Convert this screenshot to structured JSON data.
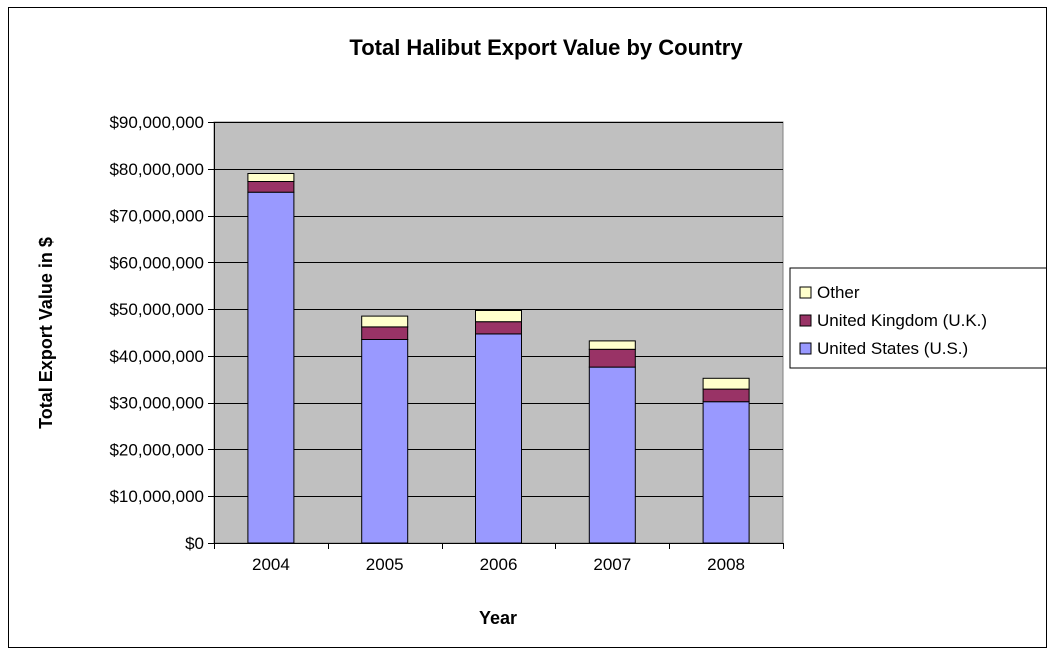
{
  "chart_data": {
    "type": "bar",
    "stacked": true,
    "title": "Total Halibut Export Value by Country",
    "xlabel": "Year",
    "ylabel": "Total Export Value in $",
    "categories": [
      "2004",
      "2005",
      "2006",
      "2007",
      "2008"
    ],
    "ylim": [
      0,
      90000000
    ],
    "yticks": [
      0,
      10000000,
      20000000,
      30000000,
      40000000,
      50000000,
      60000000,
      70000000,
      80000000,
      90000000
    ],
    "ytick_labels": [
      "$0",
      "$10,000,000",
      "$20,000,000",
      "$30,000,000",
      "$40,000,000",
      "$50,000,000",
      "$60,000,000",
      "$70,000,000",
      "$80,000,000",
      "$90,000,000"
    ],
    "grid": true,
    "legend_position": "right",
    "series": [
      {
        "name": "United States (U.S.)",
        "color": "#9999FF",
        "values": [
          75000000,
          43500000,
          44700000,
          37600000,
          30200000
        ]
      },
      {
        "name": "United Kingdom (U.K.)",
        "color": "#993366",
        "values": [
          2300000,
          2700000,
          2600000,
          3800000,
          2700000
        ]
      },
      {
        "name": "Other",
        "color": "#FFFFCC",
        "values": [
          1700000,
          2300000,
          2400000,
          1800000,
          2300000
        ]
      }
    ],
    "legend_order": [
      "Other",
      "United Kingdom (U.K.)",
      "United States (U.S.)"
    ]
  }
}
